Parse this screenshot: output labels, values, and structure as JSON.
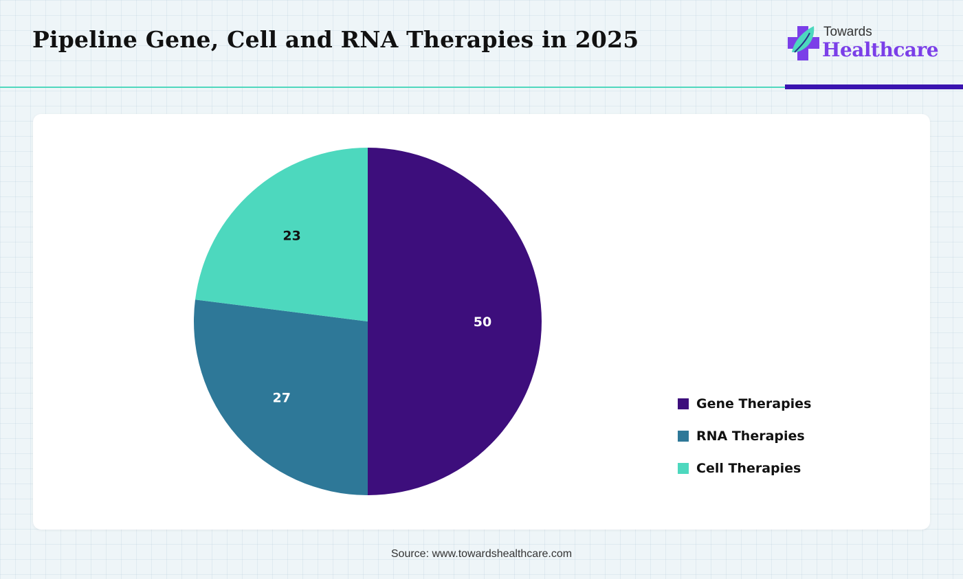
{
  "header": {
    "title": "Pipeline Gene, Cell and RNA Therapies in 2025"
  },
  "logo": {
    "line1": "Towards",
    "line2": "Healthcare"
  },
  "source": "Source: www.towardshealthcare.com",
  "chart_data": {
    "type": "pie",
    "title": "Pipeline Gene, Cell and RNA Therapies in 2025",
    "categories": [
      "Gene Therapies",
      "RNA Therapies",
      "Cell Therapies"
    ],
    "values": [
      50,
      27,
      23
    ],
    "colors": [
      "#3d0e7c",
      "#2e7898",
      "#4dd8be"
    ],
    "label_colors": [
      "#ffffff",
      "#ffffff",
      "#111111"
    ],
    "legend_position": "right",
    "start_angle_deg": 0,
    "direction": "clockwise"
  }
}
